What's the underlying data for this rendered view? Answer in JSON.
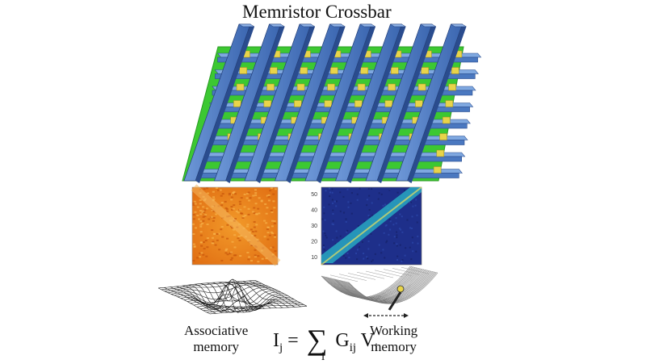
{
  "title": "Memristor Crossbar",
  "associative_label": [
    "Associative",
    "memory"
  ],
  "working_label": [
    "Working",
    "memory"
  ],
  "formula": {
    "lhs": "I",
    "lhs_sub": "j",
    "equals": "=",
    "sum": "∑",
    "sum_index": "i",
    "g": "G",
    "g_sub": "ij",
    "v": "V",
    "v_sub": "i"
  },
  "heatmap_right": {
    "y_ticks": [
      "10",
      "20",
      "30",
      "40",
      "50"
    ]
  },
  "colors": {
    "substrate": "#3cc832",
    "bar": "#4a78c0",
    "bar_dark": "#2a4c8e",
    "memristor": "#e8d44a",
    "assoc_map": "#e8861e",
    "work_map_bg": "#1e2f8a",
    "work_map_diag": "#2ab8c8"
  }
}
